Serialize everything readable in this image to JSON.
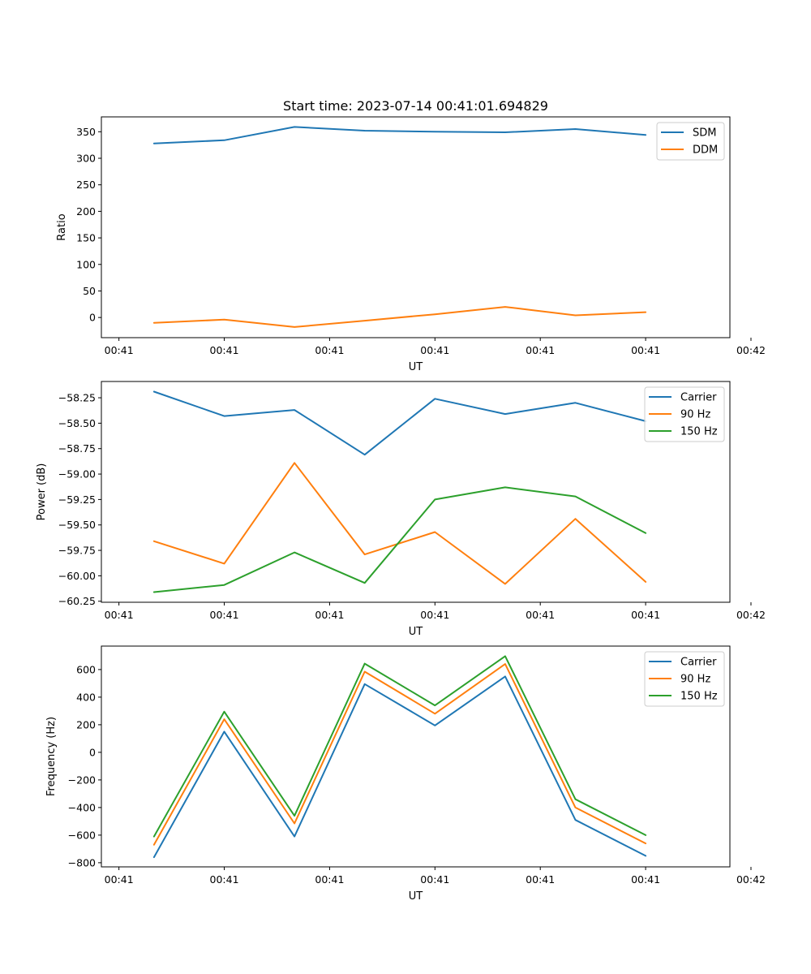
{
  "chart_data": [
    {
      "type": "line",
      "title": "Start time: 2023-07-14 00:41:01.694829",
      "xlabel": "UT",
      "ylabel": "Ratio",
      "x": [
        1,
        2,
        3,
        4,
        5,
        6,
        7,
        8
      ],
      "xlim": [
        0.25,
        9.2
      ],
      "xticks": [
        0.5,
        2,
        3.5,
        5,
        6.5,
        8,
        9.5
      ],
      "xtick_labels": [
        "00:41",
        "00:41",
        "00:41",
        "00:41",
        "00:41",
        "00:41",
        "00:42"
      ],
      "ylim": [
        -38,
        378
      ],
      "yticks": [
        0,
        50,
        100,
        150,
        200,
        250,
        300,
        350
      ],
      "ytick_labels": [
        "0",
        "50",
        "100",
        "150",
        "200",
        "250",
        "300",
        "350"
      ],
      "legend_position": "top-right",
      "series": [
        {
          "name": "SDM",
          "color": "#1f77b4",
          "values": [
            328,
            334,
            359,
            352,
            350,
            349,
            355,
            344
          ]
        },
        {
          "name": "DDM",
          "color": "#ff7f0e",
          "values": [
            -10,
            -4,
            -18,
            -6,
            6,
            20,
            4,
            10
          ]
        }
      ]
    },
    {
      "type": "line",
      "title": "",
      "xlabel": "UT",
      "ylabel": "Power (dB)",
      "x": [
        1,
        2,
        3,
        4,
        5,
        6,
        7,
        8
      ],
      "xlim": [
        0.25,
        9.2
      ],
      "xticks": [
        0.5,
        2,
        3.5,
        5,
        6.5,
        8,
        9.5
      ],
      "xtick_labels": [
        "00:41",
        "00:41",
        "00:41",
        "00:41",
        "00:41",
        "00:41",
        "00:42"
      ],
      "ylim": [
        -60.26,
        -58.09
      ],
      "yticks": [
        -60.25,
        -60.0,
        -59.75,
        -59.5,
        -59.25,
        -59.0,
        -58.75,
        -58.5,
        -58.25
      ],
      "ytick_labels": [
        "−60.25",
        "−60.00",
        "−59.75",
        "−59.50",
        "−59.25",
        "−59.00",
        "−58.75",
        "−58.50",
        "−58.25"
      ],
      "legend_position": "top-right",
      "series": [
        {
          "name": "Carrier",
          "color": "#1f77b4",
          "values": [
            -58.19,
            -58.43,
            -58.37,
            -58.81,
            -58.26,
            -58.41,
            -58.3,
            -58.48
          ]
        },
        {
          "name": "90 Hz",
          "color": "#ff7f0e",
          "values": [
            -59.66,
            -59.88,
            -58.89,
            -59.79,
            -59.57,
            -60.08,
            -59.44,
            -60.06
          ]
        },
        {
          "name": "150 Hz",
          "color": "#2ca02c",
          "values": [
            -60.16,
            -60.09,
            -59.77,
            -60.07,
            -59.25,
            -59.13,
            -59.22,
            -59.58
          ]
        }
      ]
    },
    {
      "type": "line",
      "title": "",
      "xlabel": "UT",
      "ylabel": "Frequency (Hz)",
      "x": [
        1,
        2,
        3,
        4,
        5,
        6,
        7,
        8
      ],
      "xlim": [
        0.25,
        9.2
      ],
      "xticks": [
        0.5,
        2,
        3.5,
        5,
        6.5,
        8,
        9.5
      ],
      "xtick_labels": [
        "00:41",
        "00:41",
        "00:41",
        "00:41",
        "00:41",
        "00:41",
        "00:42"
      ],
      "ylim": [
        -830,
        770
      ],
      "yticks": [
        -800,
        -600,
        -400,
        -200,
        0,
        200,
        400,
        600
      ],
      "ytick_labels": [
        "−800",
        "−600",
        "−400",
        "−200",
        "0",
        "200",
        "400",
        "600"
      ],
      "legend_position": "top-right",
      "series": [
        {
          "name": "Carrier",
          "color": "#1f77b4",
          "values": [
            -760,
            150,
            -610,
            495,
            195,
            550,
            -490,
            -750
          ]
        },
        {
          "name": "90 Hz",
          "color": "#ff7f0e",
          "values": [
            -670,
            240,
            -515,
            585,
            280,
            640,
            -400,
            -660
          ]
        },
        {
          "name": "150 Hz",
          "color": "#2ca02c",
          "values": [
            -610,
            295,
            -460,
            643,
            340,
            697,
            -340,
            -600
          ]
        }
      ]
    }
  ]
}
